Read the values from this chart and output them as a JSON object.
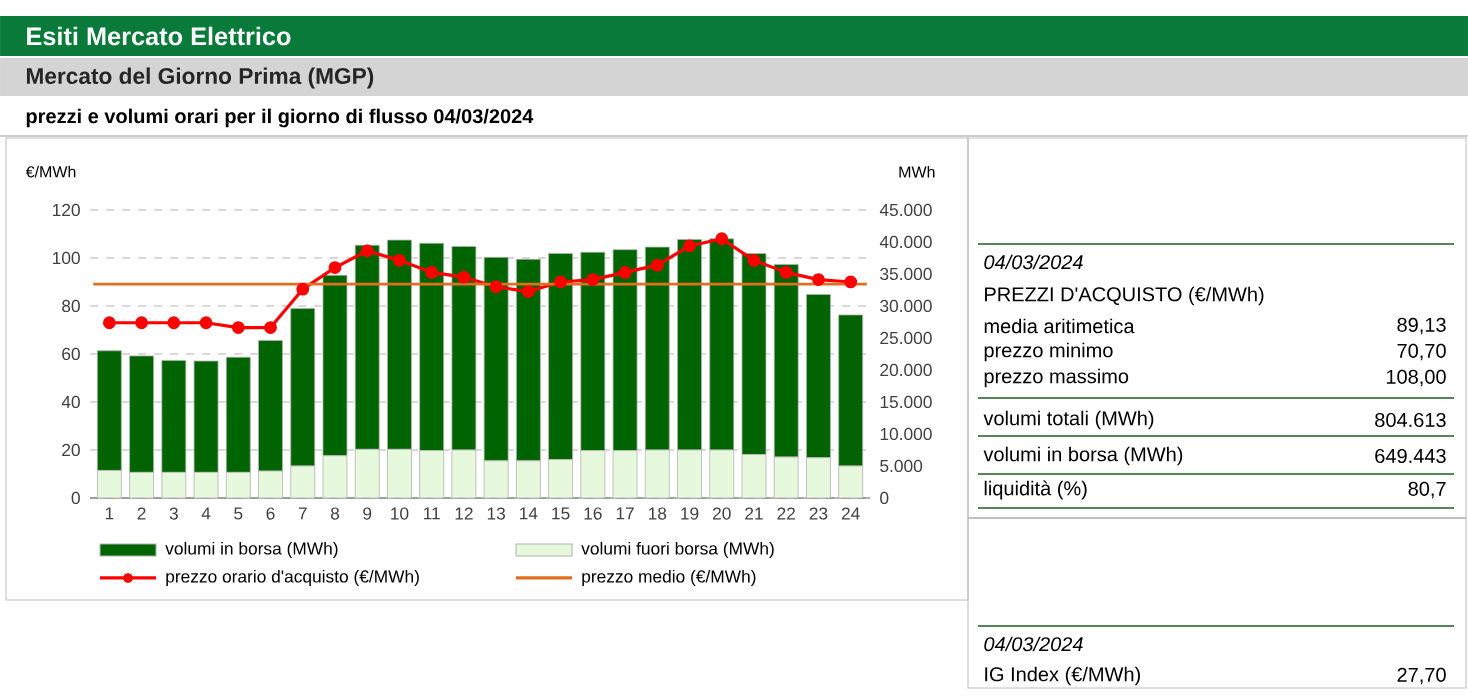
{
  "chart_data": [
    {
      "type": "bar",
      "title": "Esiti Mercato Elettrico",
      "subtitle": "Mercato del Giorno Prima (MGP)",
      "annotations": [
        "prezzi e volumi orari per il giorno di flusso 04/03/2024"
      ],
      "ylabel": "€/MWh",
      "y2label": "MWh",
      "categories": [
        "1",
        "2",
        "3",
        "4",
        "5",
        "6",
        "7",
        "8",
        "9",
        "10",
        "11",
        "12",
        "13",
        "14",
        "15",
        "16",
        "17",
        "18",
        "19",
        "20",
        "21",
        "22",
        "23",
        "24"
      ],
      "stacked": true,
      "series": [
        {
          "name": "volumi fuori borsa (MWh)",
          "color": "#e6f9dc",
          "axis": "y2",
          "values": [
            4300,
            4000,
            4000,
            4000,
            4000,
            4200,
            5000,
            6600,
            7600,
            7600,
            7400,
            7500,
            5800,
            5800,
            6000,
            7400,
            7400,
            7500,
            7500,
            7500,
            6800,
            6400,
            6300,
            5000
          ]
        },
        {
          "name": "volumi in borsa (MWh)",
          "color": "#006400",
          "axis": "y2",
          "values": [
            18700,
            18200,
            17500,
            17400,
            18000,
            20400,
            24600,
            28200,
            31900,
            32700,
            32400,
            31800,
            31800,
            31500,
            32200,
            31000,
            31400,
            31700,
            32900,
            33000,
            31400,
            30100,
            25500,
            23600
          ]
        },
        {
          "name": "prezzo orario d'acquisto (€/MWh)",
          "type": "line",
          "color": "#ff0000",
          "axis": "y",
          "marker": "circle",
          "line_style": "solid",
          "values": [
            73,
            73,
            73,
            73,
            71,
            71,
            87,
            96,
            103,
            99,
            94,
            92,
            88,
            86,
            90,
            91,
            94,
            97,
            105,
            108,
            99,
            94,
            91,
            90
          ]
        }
      ],
      "ref_lines": [
        {
          "axis": "y",
          "value": 89.13,
          "label": "prezzo medio (€/MWh)",
          "color": "#e07020",
          "line_style": "solid"
        }
      ],
      "ylim": [
        0,
        120
      ],
      "yticks": [
        0,
        20,
        40,
        60,
        80,
        100,
        120
      ],
      "y2lim": [
        0,
        45000
      ],
      "y2ticks": [
        0,
        {
          "value": 5000,
          "label": "5.000"
        },
        {
          "value": 10000,
          "label": "10.000"
        },
        {
          "value": 15000,
          "label": "15.000"
        },
        {
          "value": 20000,
          "label": "20.000"
        },
        {
          "value": 25000,
          "label": "25.000"
        },
        {
          "value": 30000,
          "label": "30.000"
        },
        {
          "value": 35000,
          "label": "35.000"
        },
        {
          "value": 40000,
          "label": "40.000"
        },
        {
          "value": 45000,
          "label": "45.000"
        }
      ],
      "grid": "y",
      "legend": "bottom"
    },
    {
      "type": "other",
      "title": "04/03/2024",
      "subtitle": "PREZZI D'ACQUISTO (€/MWh)",
      "annotations": [
        "media aritimetica",
        "89,13",
        "prezzo minimo",
        "70,70",
        "prezzo massimo",
        "108,00",
        "volumi totali (MWh)",
        "804.613",
        "volumi in borsa (MWh)",
        "649.443",
        "liquidità  (%)",
        "80,7",
        "04/03/2024",
        "IG Index (€/MWh)",
        "27,70"
      ]
    }
  ]
}
